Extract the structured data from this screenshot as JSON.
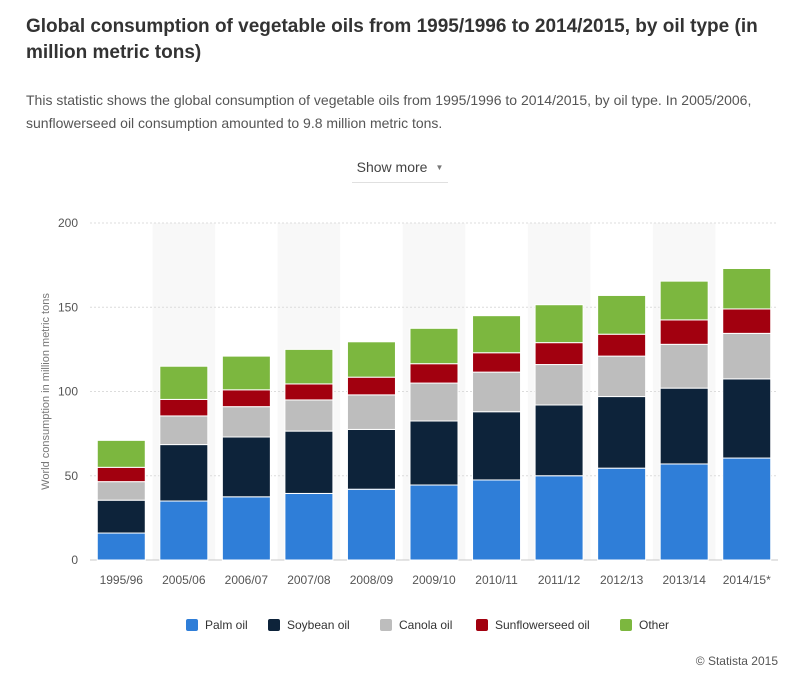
{
  "header": {
    "title": "Global consumption of vegetable oils from 1995/1996 to 2014/2015, by oil type (in million metric tons)",
    "description": "This statistic shows the global consumption of vegetable oils from 1995/1996 to 2014/2015, by oil type. In 2005/2006, sunflowerseed oil consumption amounted to 9.8 million metric tons.",
    "show_more": "Show more"
  },
  "footer": {
    "credit": "© Statista 2015"
  },
  "chart_data": {
    "type": "bar",
    "stacked": true,
    "title": "",
    "xlabel": "",
    "ylabel": "World consumption in million metric tons",
    "ylim": [
      0,
      200
    ],
    "yticks": [
      0,
      50,
      100,
      150,
      200
    ],
    "grid": true,
    "legend_position": "bottom",
    "categories": [
      "1995/96",
      "2005/06",
      "2006/07",
      "2007/08",
      "2008/09",
      "2009/10",
      "2010/11",
      "2011/12",
      "2012/13",
      "2013/14",
      "2014/15*"
    ],
    "series": [
      {
        "name": "Palm oil",
        "color": "#2f7ed8",
        "values": [
          16.0,
          35.0,
          37.5,
          39.5,
          42.0,
          44.5,
          47.5,
          50.0,
          54.5,
          57.0,
          60.5
        ]
      },
      {
        "name": "Soybean oil",
        "color": "#0d233a",
        "values": [
          19.5,
          33.5,
          35.5,
          37.0,
          35.5,
          38.0,
          40.5,
          42.0,
          42.5,
          45.0,
          47.0
        ]
      },
      {
        "name": "Canola oil",
        "color": "#bdbdbd",
        "values": [
          11.0,
          17.0,
          18.0,
          18.5,
          20.5,
          22.5,
          23.5,
          24.0,
          24.0,
          26.0,
          27.0
        ]
      },
      {
        "name": "Sunflowerseed oil",
        "color": "#a2000f",
        "values": [
          8.5,
          9.8,
          10.0,
          9.5,
          10.5,
          11.5,
          11.5,
          13.0,
          13.0,
          14.5,
          14.5
        ]
      },
      {
        "name": "Other",
        "color": "#7cb73f",
        "values": [
          16.0,
          19.7,
          20.0,
          20.5,
          21.0,
          21.0,
          22.0,
          22.5,
          23.0,
          23.0,
          24.0
        ]
      }
    ]
  }
}
